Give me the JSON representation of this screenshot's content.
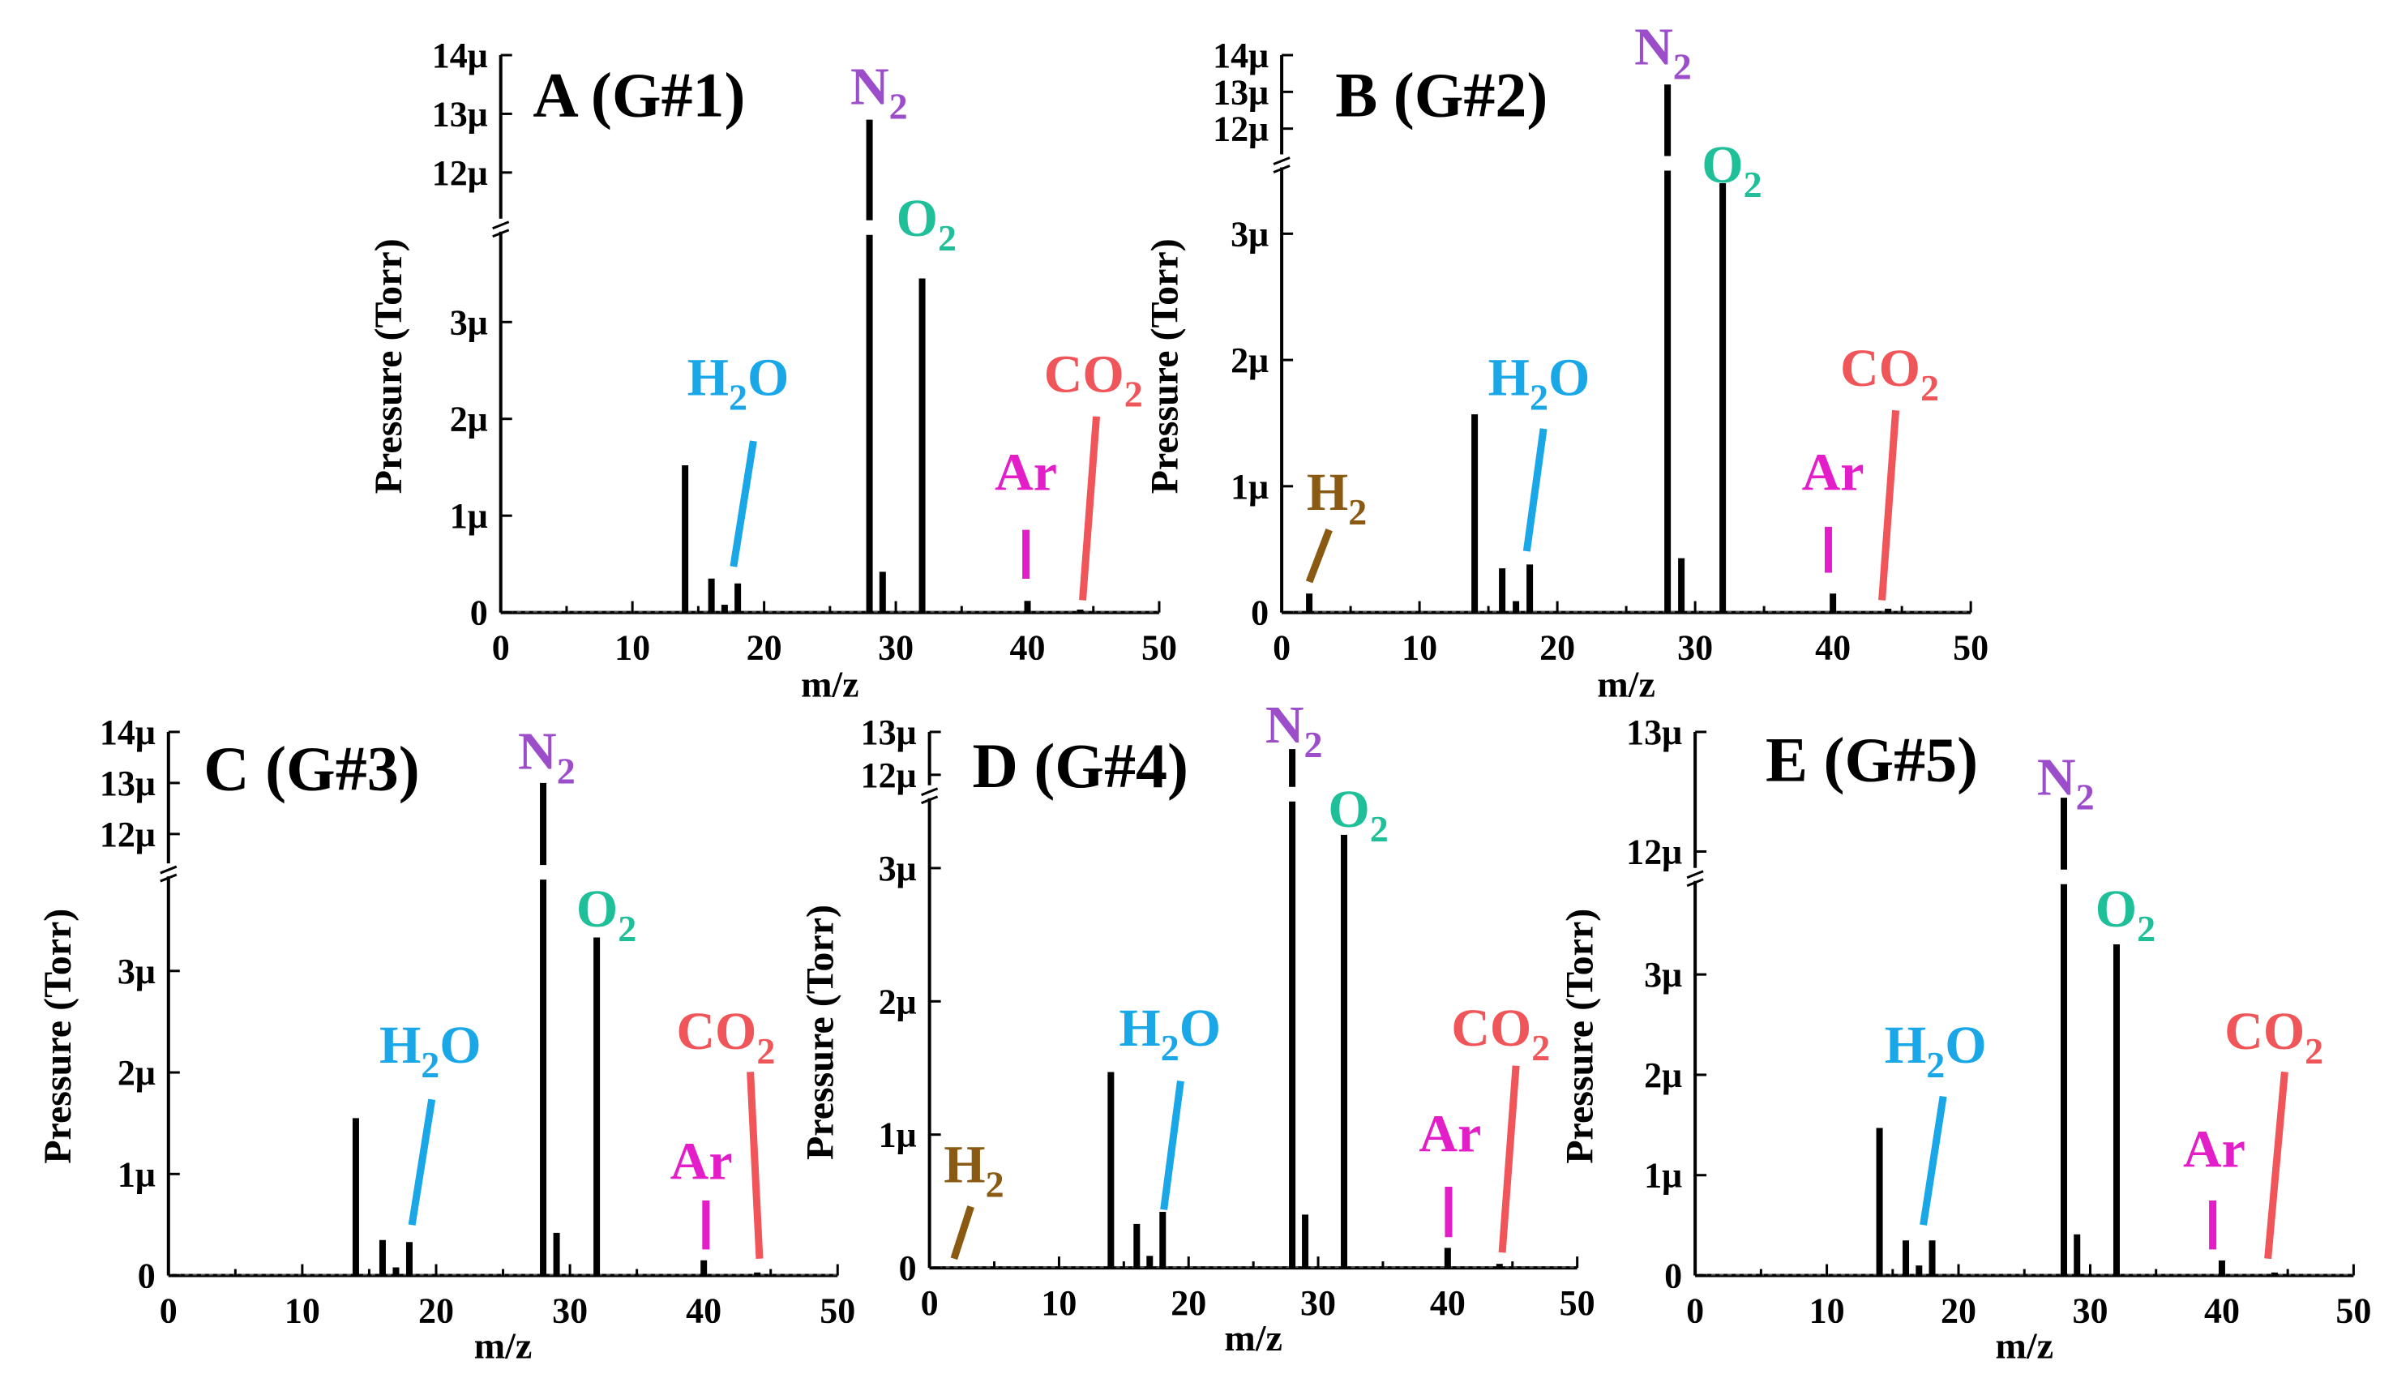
{
  "chart_data": [
    {
      "type": "bar",
      "title": "A (G#1)",
      "xlabel": "m/z",
      "ylabel": "Pressure (Torr)",
      "xlim": [
        0,
        50
      ],
      "x_ticks": [
        "0",
        "10",
        "20",
        "30",
        "40",
        "50"
      ],
      "y_ticks_lower": [
        "0",
        "1μ",
        "2μ",
        "3μ"
      ],
      "y_ticks_upper": [
        "12μ",
        "13μ",
        "14μ"
      ],
      "ylim_lower": [
        0,
        3.9
      ],
      "ylim_upper": [
        11.6,
        14.0
      ],
      "units": "μTorr",
      "grid": false,
      "axis_break": true,
      "series": [
        {
          "x": [
            14,
            16,
            17,
            18,
            28,
            29,
            32,
            40,
            44
          ],
          "values": [
            1.52,
            0.35,
            0.08,
            0.3,
            12.9,
            0.42,
            3.45,
            0.12,
            0.03
          ]
        }
      ],
      "annotations": [
        {
          "text": "N",
          "sub": "2",
          "color": "#9b4dca",
          "x": 28
        },
        {
          "text": "O",
          "sub": "2",
          "color": "#1fbf9a",
          "x": 32
        },
        {
          "text": "H",
          "sub": "2",
          "tail": "O",
          "color": "#1aa7e8",
          "x": 18
        },
        {
          "text": "Ar",
          "color": "#e31ec9",
          "x": 40
        },
        {
          "text": "CO",
          "sub": "2",
          "color": "#f0555a",
          "x": 44
        }
      ]
    },
    {
      "type": "bar",
      "title": "B (G#2)",
      "xlabel": "m/z",
      "ylabel": "Pressure (Torr)",
      "xlim": [
        0,
        50
      ],
      "x_ticks": [
        "0",
        "10",
        "20",
        "30",
        "40",
        "50"
      ],
      "y_ticks_lower": [
        "0",
        "1μ",
        "2μ",
        "3μ"
      ],
      "y_ticks_upper": [
        "12μ",
        "13μ",
        "14μ"
      ],
      "ylim_lower": [
        0,
        3.5
      ],
      "ylim_upper": [
        12.0,
        14.0
      ],
      "units": "μTorr",
      "grid": false,
      "axis_break": true,
      "series": [
        {
          "x": [
            2,
            14,
            16,
            17,
            18,
            28,
            29,
            32,
            40,
            44
          ],
          "values": [
            0.15,
            1.57,
            0.35,
            0.09,
            0.38,
            13.2,
            0.43,
            3.4,
            0.15,
            0.03
          ]
        }
      ],
      "annotations": [
        {
          "text": "N",
          "sub": "2",
          "color": "#9b4dca",
          "x": 28
        },
        {
          "text": "O",
          "sub": "2",
          "color": "#1fbf9a",
          "x": 32
        },
        {
          "text": "H",
          "sub": "2",
          "tail": "O",
          "color": "#1aa7e8",
          "x": 18
        },
        {
          "text": "H",
          "sub": "2",
          "color": "#8a5a12",
          "x": 2
        },
        {
          "text": "Ar",
          "color": "#e31ec9",
          "x": 40
        },
        {
          "text": "CO",
          "sub": "2",
          "color": "#f0555a",
          "x": 44
        }
      ]
    },
    {
      "type": "bar",
      "title": "C (G#3)",
      "xlabel": "m/z",
      "ylabel": "Pressure (Torr)",
      "xlim": [
        0,
        50
      ],
      "x_ticks": [
        "0",
        "10",
        "20",
        "30",
        "40",
        "50"
      ],
      "y_ticks_lower": [
        "0",
        "1μ",
        "2μ",
        "3μ"
      ],
      "y_ticks_upper": [
        "12μ",
        "13μ",
        "14μ"
      ],
      "ylim_lower": [
        0,
        3.9
      ],
      "ylim_upper": [
        11.9,
        14.0
      ],
      "units": "μTorr",
      "grid": false,
      "axis_break": true,
      "series": [
        {
          "x": [
            14,
            16,
            17,
            18,
            28,
            29,
            32,
            40,
            44
          ],
          "values": [
            1.55,
            0.35,
            0.08,
            0.33,
            13.0,
            0.42,
            3.33,
            0.15,
            0.03
          ]
        }
      ],
      "annotations": [
        {
          "text": "N",
          "sub": "2",
          "color": "#9b4dca",
          "x": 28
        },
        {
          "text": "O",
          "sub": "2",
          "color": "#1fbf9a",
          "x": 32
        },
        {
          "text": "H",
          "sub": "2",
          "tail": "O",
          "color": "#1aa7e8",
          "x": 18
        },
        {
          "text": "Ar",
          "color": "#e31ec9",
          "x": 40
        },
        {
          "text": "CO",
          "sub": "2",
          "color": "#f0555a",
          "x": 44
        }
      ]
    },
    {
      "type": "bar",
      "title": "D (G#4)",
      "xlabel": "m/z",
      "ylabel": "Pressure (Torr)",
      "xlim": [
        0,
        50
      ],
      "x_ticks": [
        "0",
        "10",
        "20",
        "30",
        "40",
        "50"
      ],
      "y_ticks_lower": [
        "0",
        "1μ",
        "2μ",
        "3μ"
      ],
      "y_ticks_upper": [
        "12μ",
        "13μ"
      ],
      "ylim_lower": [
        0,
        3.5
      ],
      "ylim_upper": [
        12.0,
        13.0
      ],
      "units": "μTorr",
      "grid": false,
      "axis_break": true,
      "series": [
        {
          "x": [
            14,
            16,
            17,
            18,
            28,
            29,
            32,
            40,
            44
          ],
          "values": [
            1.47,
            0.33,
            0.09,
            0.42,
            12.6,
            0.4,
            3.25,
            0.15,
            0.03
          ]
        }
      ],
      "annotations": [
        {
          "text": "N",
          "sub": "2",
          "color": "#9b4dca",
          "x": 28
        },
        {
          "text": "O",
          "sub": "2",
          "color": "#1fbf9a",
          "x": 32
        },
        {
          "text": "H",
          "sub": "2",
          "tail": "O",
          "color": "#1aa7e8",
          "x": 18
        },
        {
          "text": "H",
          "sub": "2",
          "color": "#8a5a12",
          "x": 2
        },
        {
          "text": "Ar",
          "color": "#e31ec9",
          "x": 40
        },
        {
          "text": "CO",
          "sub": "2",
          "color": "#f0555a",
          "x": 44
        }
      ]
    },
    {
      "type": "bar",
      "title": "E (G#5)",
      "xlabel": "m/z",
      "ylabel": "Pressure (Torr)",
      "xlim": [
        0,
        50
      ],
      "x_ticks": [
        "0",
        "10",
        "20",
        "30",
        "40",
        "50"
      ],
      "y_ticks_lower": [
        "0",
        "1μ",
        "2μ",
        "3μ"
      ],
      "y_ticks_upper": [
        "12μ",
        "13μ"
      ],
      "ylim_lower": [
        0,
        3.9
      ],
      "ylim_upper": [
        11.95,
        13.0
      ],
      "units": "μTorr",
      "grid": false,
      "axis_break": true,
      "series": [
        {
          "x": [
            14,
            16,
            17,
            18,
            28,
            29,
            32,
            40,
            44
          ],
          "values": [
            1.47,
            0.35,
            0.1,
            0.35,
            12.45,
            0.41,
            3.3,
            0.15,
            0.03
          ]
        }
      ],
      "annotations": [
        {
          "text": "N",
          "sub": "2",
          "color": "#9b4dca",
          "x": 28
        },
        {
          "text": "O",
          "sub": "2",
          "color": "#1fbf9a",
          "x": 32
        },
        {
          "text": "H",
          "sub": "2",
          "tail": "O",
          "color": "#1aa7e8",
          "x": 18
        },
        {
          "text": "Ar",
          "color": "#e31ec9",
          "x": 40
        },
        {
          "text": "CO",
          "sub": "2",
          "color": "#f0555a",
          "x": 44
        }
      ]
    }
  ]
}
